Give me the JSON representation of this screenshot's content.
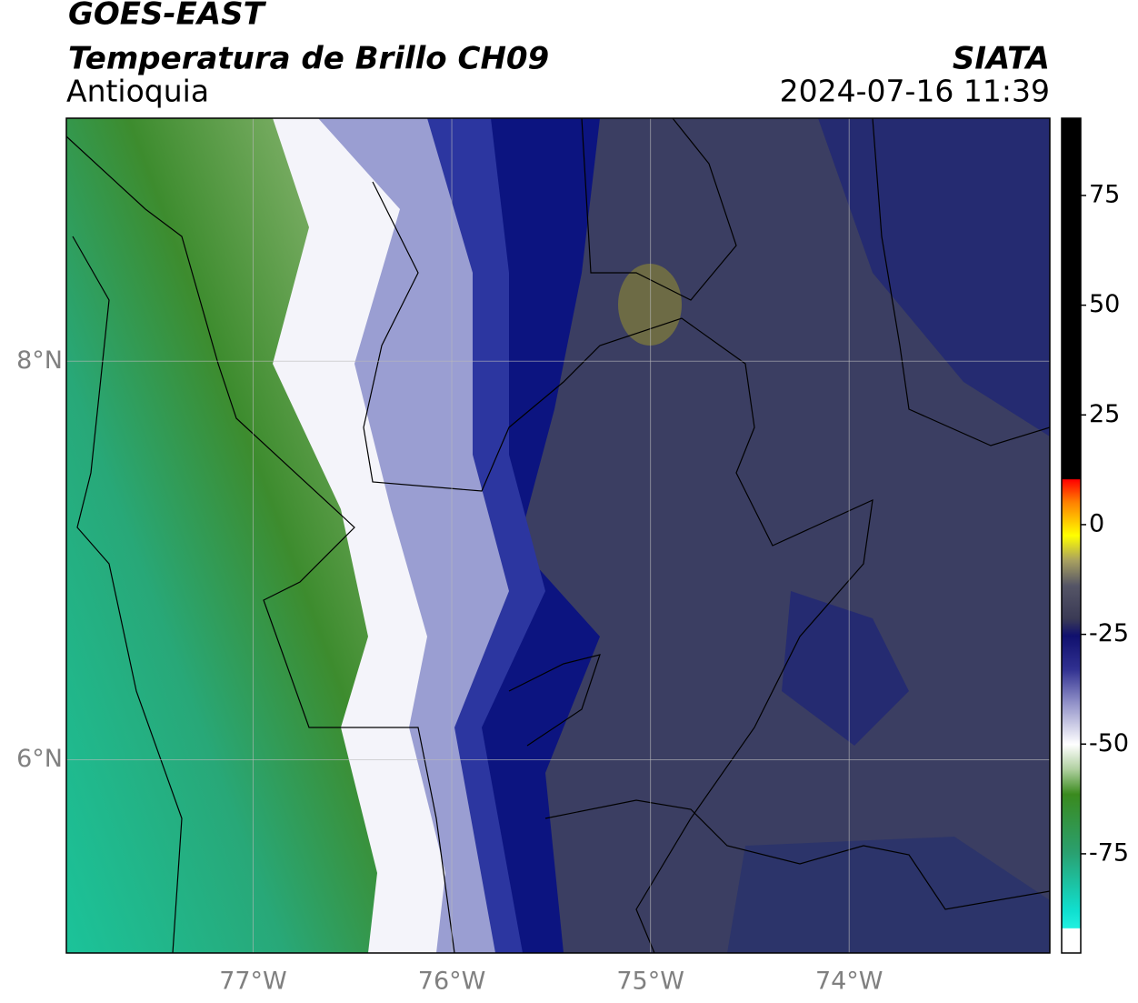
{
  "header": {
    "title": "GOES-EAST",
    "subtitle": "Temperatura de Brillo CH09",
    "region": "Antioquia",
    "source": "SIATA",
    "datetime": "2024-07-16 11:39"
  },
  "map": {
    "lonlim": [
      -77.94,
      -72.99
    ],
    "latlim": [
      5.03,
      9.22
    ],
    "lonticks": [
      {
        "value": -77,
        "label": "77°W"
      },
      {
        "value": -76,
        "label": "76°W"
      },
      {
        "value": -75,
        "label": "75°W"
      },
      {
        "value": -74,
        "label": "74°W"
      }
    ],
    "latticks": [
      {
        "value": 8,
        "label": "8°N"
      },
      {
        "value": 6,
        "label": "6°N"
      }
    ],
    "grid": true
  },
  "colorbar": {
    "lim": [
      -97.6,
      92.6
    ],
    "ticks": [
      75,
      50,
      25,
      0,
      -25,
      -50,
      -75
    ]
  }
}
